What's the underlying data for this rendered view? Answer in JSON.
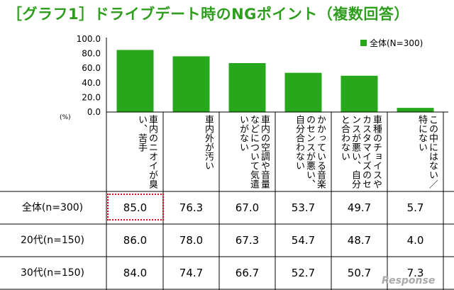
{
  "title": "［グラフ1］ドライブデート時のNGポイント（複数回答）",
  "unit_label": "(%)",
  "legend": {
    "label": "全体(N=300)",
    "color": "#27a81c"
  },
  "chart_data": {
    "type": "bar",
    "title": "［グラフ1］ドライブデート時のNGポイント（複数回答）",
    "categories": [
      "車内のニオイが臭い、苦手",
      "車内外が汚い",
      "車内の空調や音量などについて気遣いがない",
      "かかっている音楽のセンスが悪い、自分合わない",
      "車種のチョイスやカスタマイズのセンスが悪い、自分と合わない",
      "この中にはない／特にない"
    ],
    "series": [
      {
        "name": "全体(N=300)",
        "values": [
          85.0,
          76.3,
          67.0,
          53.7,
          49.7,
          5.7
        ]
      }
    ],
    "yticks": [
      "100.0",
      "80.0",
      "60.0",
      "40.0",
      "20.0",
      "0.0"
    ],
    "ylim": [
      0,
      100
    ],
    "bar_color": "#27a81c"
  },
  "table": {
    "rows": [
      {
        "label": "全体(n=300)",
        "values": [
          "85.0",
          "76.3",
          "67.0",
          "53.7",
          "49.7",
          "5.7"
        ]
      },
      {
        "label": "20代(n=150)",
        "values": [
          "86.0",
          "78.0",
          "67.3",
          "54.7",
          "48.7",
          "4.0"
        ]
      },
      {
        "label": "30代(n=150)",
        "values": [
          "84.0",
          "74.7",
          "66.7",
          "52.7",
          "50.7",
          "7.3"
        ]
      }
    ],
    "highlight_color": "#d8121c"
  },
  "watermark": "Response"
}
